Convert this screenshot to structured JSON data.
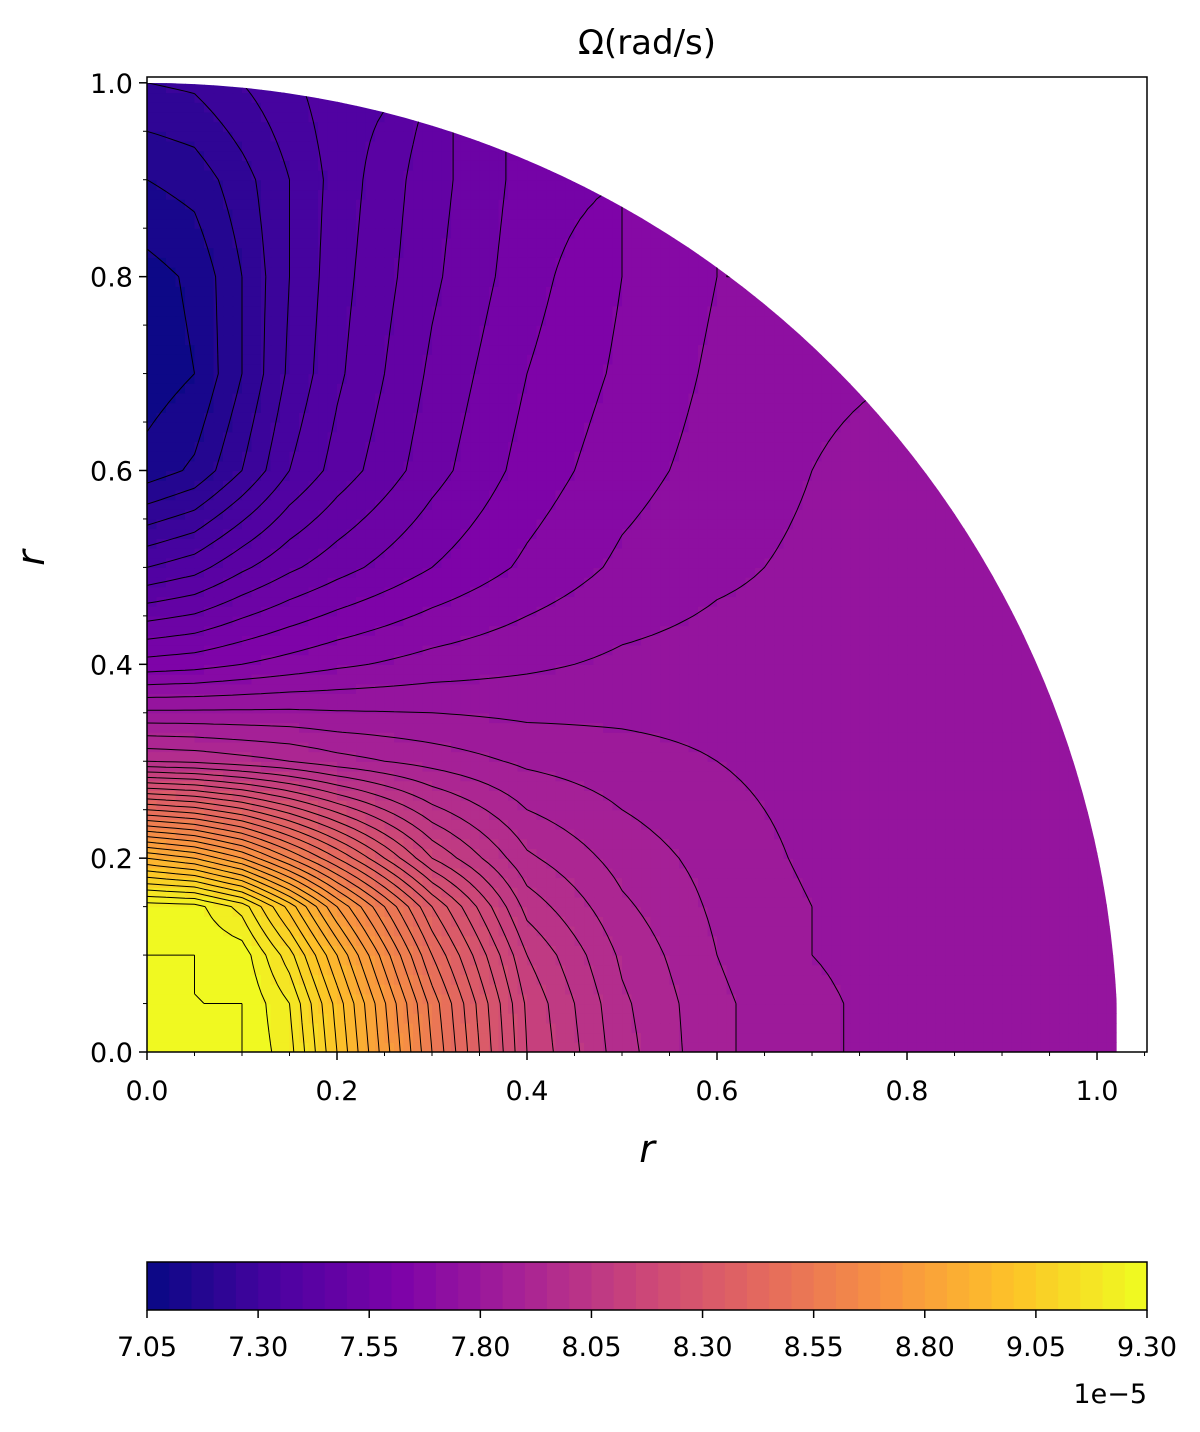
{
  "chart_data": {
    "type": "contourf",
    "title": "Ω(rad/s)",
    "xlabel": "r",
    "ylabel": "r",
    "xlim": [
      0,
      1.0526
    ],
    "ylim": [
      0,
      1.006
    ],
    "xticks": [
      {
        "value": 0,
        "label": "0.0"
      },
      {
        "value": 0.2,
        "label": "0.2"
      },
      {
        "value": 0.4,
        "label": "0.4"
      },
      {
        "value": 0.6,
        "label": "0.6"
      },
      {
        "value": 0.8,
        "label": "0.8"
      },
      {
        "value": 1.0,
        "label": "1.0"
      }
    ],
    "yticks": [
      {
        "value": 0,
        "label": "0.0"
      },
      {
        "value": 0.2,
        "label": "0.2"
      },
      {
        "value": 0.4,
        "label": "0.4"
      },
      {
        "value": 0.6,
        "label": "0.6"
      },
      {
        "value": 0.8,
        "label": "0.8"
      },
      {
        "value": 1.0,
        "label": "1.0"
      }
    ],
    "xticks_minor": [
      0.05,
      0.1,
      0.15,
      0.25,
      0.3,
      0.35,
      0.45,
      0.5,
      0.55,
      0.65,
      0.7,
      0.75,
      0.85,
      0.9,
      0.95,
      1.05
    ],
    "yticks_minor": [
      0.05,
      0.1,
      0.15,
      0.25,
      0.3,
      0.35,
      0.45,
      0.5,
      0.55,
      0.65,
      0.7,
      0.75,
      0.85,
      0.9,
      0.95
    ],
    "colormap": "plasma",
    "x": [
      0,
      0.05,
      0.1,
      0.15,
      0.2,
      0.3,
      0.4,
      0.5,
      0.6,
      0.7,
      0.8,
      0.9,
      1.0
    ],
    "y": [
      0,
      0.05,
      0.1,
      0.15,
      0.2,
      0.3,
      0.4,
      0.5,
      0.6,
      0.7,
      0.8,
      0.9,
      1.0
    ],
    "z": [
      [
        9.3,
        9.3,
        9.3,
        9.22,
        9.0,
        8.55,
        8.15,
        7.97,
        7.86,
        7.81,
        7.78,
        7.77,
        7.77
      ],
      [
        9.3,
        9.3,
        9.3,
        9.2,
        8.98,
        8.53,
        8.14,
        7.96,
        7.86,
        7.81,
        7.78,
        7.77,
        7.77
      ],
      [
        9.3,
        9.3,
        9.28,
        9.12,
        8.9,
        8.45,
        8.1,
        7.94,
        7.85,
        7.8,
        7.78,
        7.77,
        7.77
      ],
      [
        9.28,
        9.27,
        9.18,
        8.98,
        8.75,
        8.35,
        8.03,
        7.91,
        7.84,
        7.8,
        7.78,
        7.77,
        7.77
      ],
      [
        8.9,
        8.85,
        8.75,
        8.6,
        8.45,
        8.15,
        7.96,
        7.88,
        7.83,
        7.79,
        7.77,
        7.77,
        7.77
      ],
      [
        8.0,
        7.99,
        7.97,
        7.95,
        7.92,
        7.88,
        7.84,
        7.82,
        7.8,
        7.78,
        7.77,
        7.77,
        null
      ],
      [
        7.62,
        7.63,
        7.65,
        7.67,
        7.69,
        7.72,
        7.74,
        7.76,
        7.77,
        7.77,
        7.77,
        7.77,
        null
      ],
      [
        7.35,
        7.38,
        7.44,
        7.49,
        7.53,
        7.6,
        7.66,
        7.71,
        7.74,
        7.76,
        7.77,
        null,
        null
      ],
      [
        7.12,
        7.16,
        7.25,
        7.35,
        7.42,
        7.53,
        7.62,
        7.68,
        7.72,
        7.75,
        7.77,
        null,
        null
      ],
      [
        7.07,
        7.1,
        7.2,
        7.31,
        7.39,
        7.51,
        7.6,
        7.66,
        7.71,
        7.74,
        null,
        null,
        null
      ],
      [
        7.08,
        7.11,
        7.2,
        7.3,
        7.38,
        7.49,
        7.58,
        7.65,
        7.7,
        null,
        null,
        null,
        null
      ],
      [
        7.15,
        7.17,
        7.23,
        7.3,
        7.37,
        7.48,
        7.57,
        null,
        null,
        null,
        null,
        null,
        null
      ],
      [
        7.25,
        7.26,
        7.3,
        7.34,
        7.38,
        null,
        null,
        null,
        null,
        null,
        null,
        null,
        null
      ]
    ],
    "levels": [
      7.05,
      7.1,
      7.15,
      7.2,
      7.25,
      7.3,
      7.35,
      7.4,
      7.45,
      7.5,
      7.55,
      7.6,
      7.65,
      7.7,
      7.75,
      7.8,
      7.85,
      7.9,
      7.95,
      8.0,
      8.05,
      8.1,
      8.15,
      8.2,
      8.25,
      8.3,
      8.35,
      8.4,
      8.45,
      8.5,
      8.55,
      8.6,
      8.65,
      8.7,
      8.75,
      8.8,
      8.85,
      8.9,
      8.95,
      9.0,
      9.05,
      9.1,
      9.15,
      9.2,
      9.25,
      9.3
    ],
    "colorbar_ticks": [
      {
        "value": 7.05,
        "label": "7.05"
      },
      {
        "value": 7.3,
        "label": "7.30"
      },
      {
        "value": 7.55,
        "label": "7.55"
      },
      {
        "value": 7.8,
        "label": "7.80"
      },
      {
        "value": 8.05,
        "label": "8.05"
      },
      {
        "value": 8.3,
        "label": "8.30"
      },
      {
        "value": 8.55,
        "label": "8.55"
      },
      {
        "value": 8.8,
        "label": "8.80"
      },
      {
        "value": 9.05,
        "label": "9.05"
      },
      {
        "value": 9.3,
        "label": "9.30"
      }
    ],
    "colorbar_offset_label": "1e−5"
  }
}
